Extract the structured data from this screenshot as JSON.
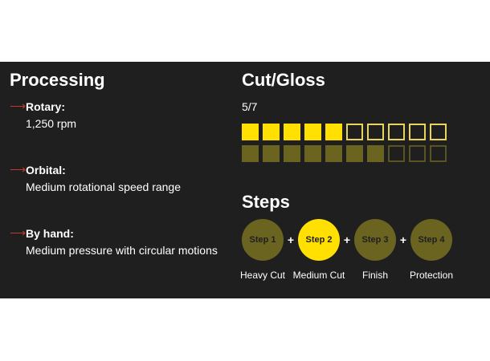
{
  "processing": {
    "title": "Processing",
    "items": [
      {
        "label": "Rotary:",
        "value": "1,250 rpm"
      },
      {
        "label": "Orbital:",
        "value": "Medium rotational speed range"
      },
      {
        "label": "By hand:",
        "value": "Medium pressure with circular motions"
      }
    ]
  },
  "cut_gloss": {
    "title": "Cut/Gloss",
    "rating": "5/7",
    "cut_level": 5,
    "gloss_level": 7,
    "total": 10
  },
  "steps": {
    "title": "Steps",
    "active": 2,
    "items": [
      {
        "label": "Step 1",
        "desc": "Heavy Cut"
      },
      {
        "label": "Step 2",
        "desc": "Medium Cut"
      },
      {
        "label": "Step 3",
        "desc": "Finish"
      },
      {
        "label": "Step 4",
        "desc": "Protection"
      }
    ],
    "separator": "+"
  },
  "colors": {
    "bg": "#1f1f1f",
    "accent": "#ffe000",
    "muted": "#6b6420",
    "arrow": "#c0392b"
  }
}
